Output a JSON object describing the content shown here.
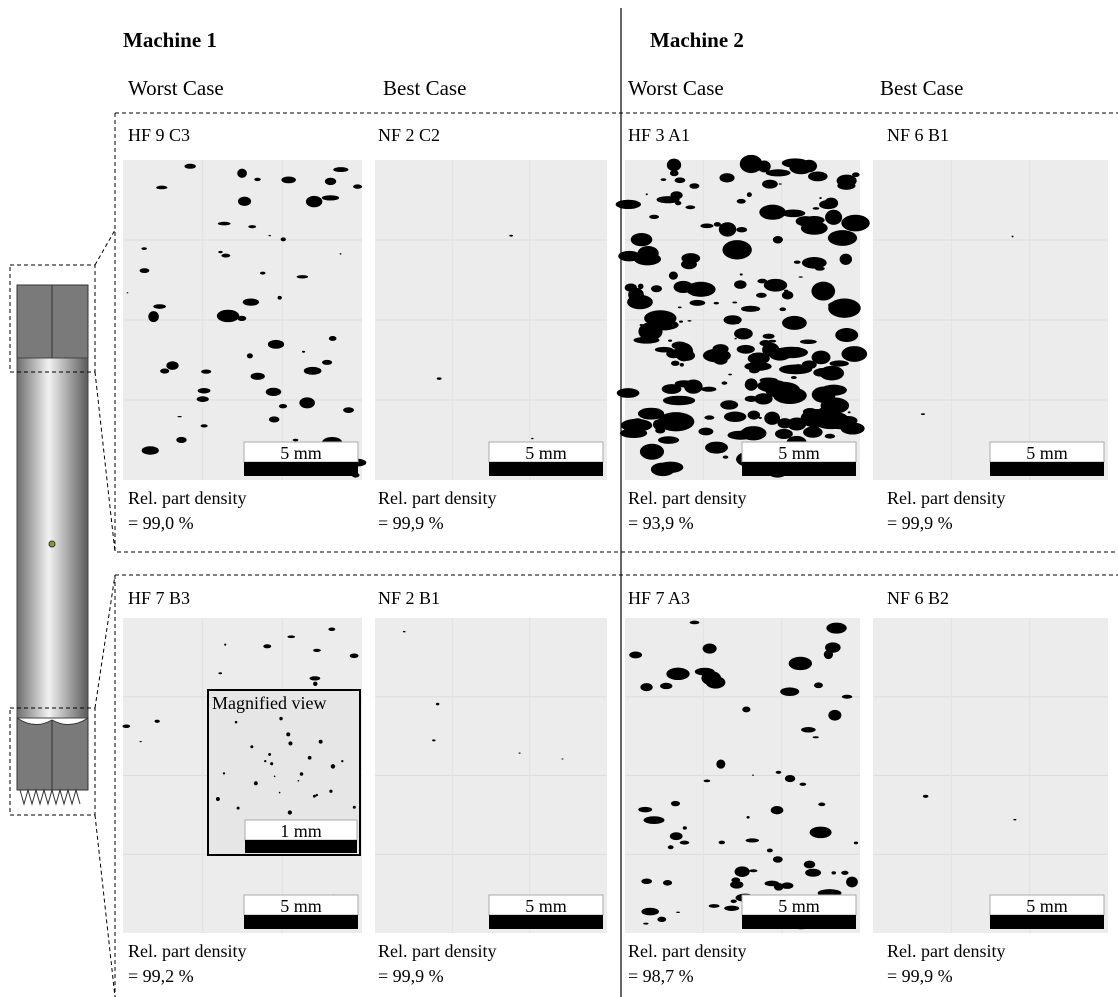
{
  "machines": [
    {
      "title": "Machine 1"
    },
    {
      "title": "Machine 2"
    }
  ],
  "columns": [
    {
      "case": "Worst Case"
    },
    {
      "case": "Best Case"
    },
    {
      "case": "Worst Case"
    },
    {
      "case": "Best Case"
    }
  ],
  "rows": [
    {
      "panels": [
        {
          "id": "HF 9 C3",
          "scale": "5 mm",
          "density_label": "Rel. part density",
          "density": "= 99,0 %"
        },
        {
          "id": "NF 2 C2",
          "scale": "5 mm",
          "density_label": "Rel. part density",
          "density": "= 99,9 %"
        },
        {
          "id": "HF 3 A1",
          "scale": "5 mm",
          "density_label": "Rel. part density",
          "density": "= 93,9 %"
        },
        {
          "id": "NF 6 B1",
          "scale": "5 mm",
          "density_label": "Rel. part density",
          "density": "= 99,9 %"
        }
      ]
    },
    {
      "panels": [
        {
          "id": "HF 7 B3",
          "scale": "5 mm",
          "density_label": "Rel. part density",
          "density": "= 99,2 %"
        },
        {
          "id": "NF 2 B1",
          "scale": "5 mm",
          "density_label": "Rel. part density",
          "density": "= 99,9 %"
        },
        {
          "id": "HF 7 A3",
          "scale": "5 mm",
          "density_label": "Rel. part density",
          "density": "= 98,7 %"
        },
        {
          "id": "NF 6 B2",
          "scale": "5 mm",
          "density_label": "Rel. part density",
          "density": "= 99,9 %"
        }
      ]
    }
  ],
  "inset": {
    "title": "Magnified view",
    "scale": "1 mm"
  }
}
